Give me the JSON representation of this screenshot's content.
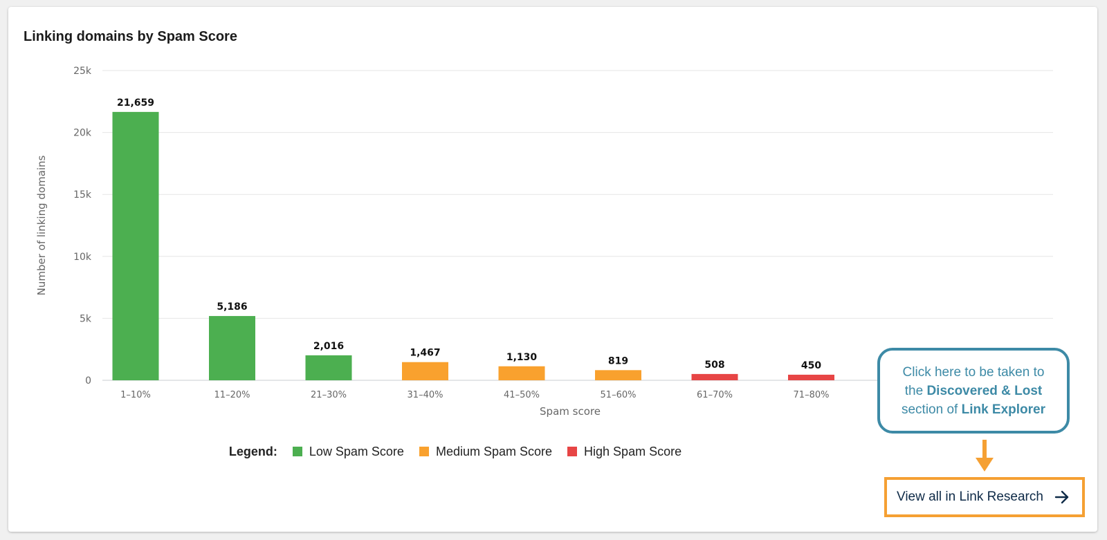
{
  "card": {
    "title": "Linking domains by Spam Score"
  },
  "chart_data": {
    "type": "bar",
    "title": "Linking domains by Spam Score",
    "xlabel": "Spam score",
    "ylabel": "Number of linking domains",
    "ylim": [
      0,
      25000
    ],
    "yticks": [
      0,
      5000,
      10000,
      15000,
      20000,
      25000
    ],
    "ytick_labels": [
      "0",
      "5k",
      "10k",
      "15k",
      "20k",
      "25k"
    ],
    "categories": [
      "1–10%",
      "11–20%",
      "21–30%",
      "31–40%",
      "41–50%",
      "51–60%",
      "61–70%",
      "71–80%"
    ],
    "values": [
      21659,
      5186,
      2016,
      1467,
      1130,
      819,
      508,
      450
    ],
    "value_labels": [
      "21,659",
      "5,186",
      "2,016",
      "1,467",
      "1,130",
      "819",
      "508",
      "450"
    ],
    "groups": [
      "low",
      "low",
      "low",
      "medium",
      "medium",
      "medium",
      "high",
      "high"
    ],
    "grid": true
  },
  "legend": {
    "title": "Legend:",
    "items": [
      {
        "key": "low",
        "label": "Low Spam Score",
        "color": "#4caf50"
      },
      {
        "key": "medium",
        "label": "Medium Spam Score",
        "color": "#f9a12e"
      },
      {
        "key": "high",
        "label": "High Spam Score",
        "color": "#e74545"
      }
    ]
  },
  "callout": {
    "line1": "Click here to be taken to",
    "line2_prefix": "the ",
    "line2_bold": "Discovered & Lost",
    "line3_prefix": "section of ",
    "line3_bold": "Link Explorer",
    "border_color": "#3d8aa6"
  },
  "link": {
    "label": "View all in Link Research",
    "icon": "arrow-right-icon",
    "highlight_color": "#f5a033"
  }
}
